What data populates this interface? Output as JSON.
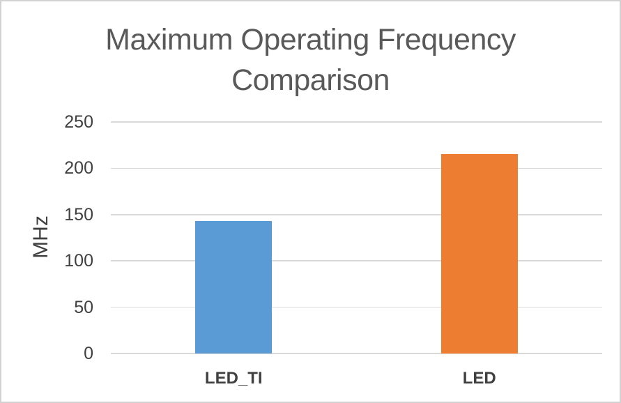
{
  "chart_data": {
    "type": "bar",
    "title": "Maximum Operating Frequency Comparison",
    "ylabel": "MHz",
    "xlabel": "",
    "categories": [
      "LED_TI",
      "LED"
    ],
    "values": [
      143,
      215
    ],
    "bar_colors": [
      "#5B9BD5",
      "#ED7D31"
    ],
    "ylim": [
      0,
      250
    ],
    "yticks": [
      0,
      50,
      100,
      150,
      200,
      250
    ],
    "grid": true,
    "legend_position": "none"
  },
  "colors": {
    "title_text": "#595959",
    "axis_text": "#404040",
    "gridline": "#D9D9D9",
    "frame_border": "#D2D2D2",
    "background": "#FFFFFF"
  }
}
